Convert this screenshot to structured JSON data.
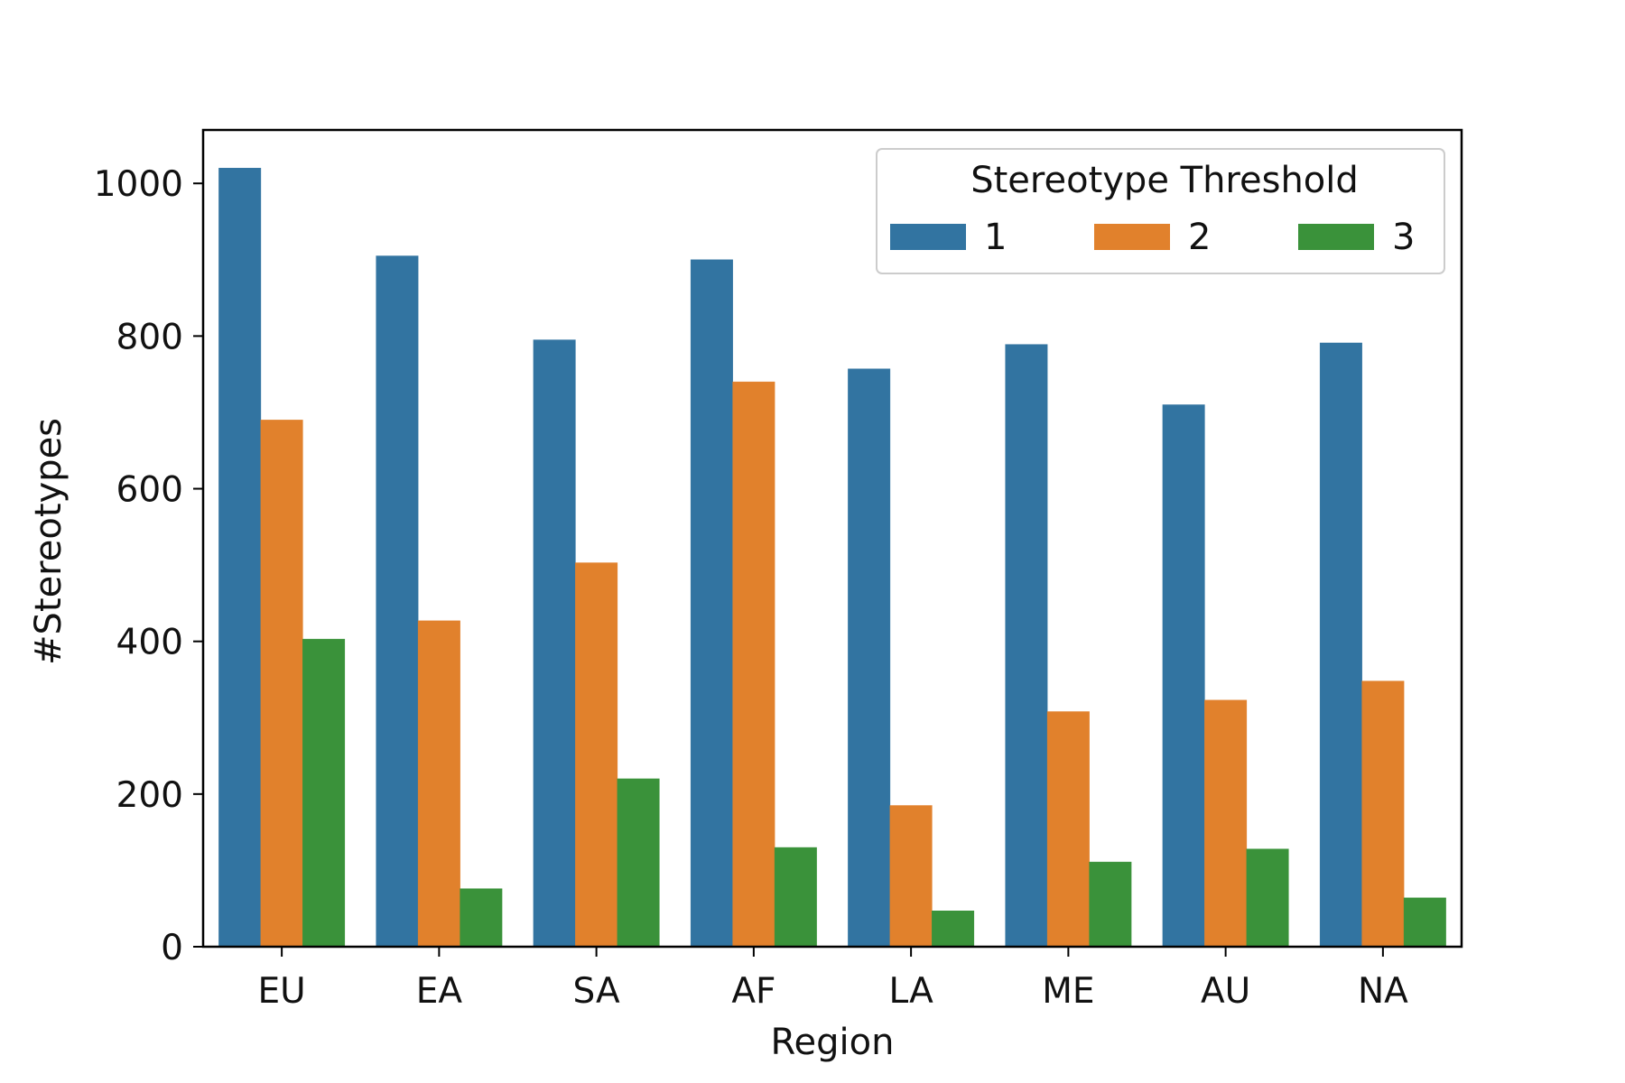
{
  "chart_data": {
    "type": "bar",
    "title": "",
    "xlabel": "Region",
    "ylabel": "#Stereotypes",
    "ylim": [
      0,
      1070
    ],
    "yticks": [
      0,
      200,
      400,
      600,
      800,
      1000
    ],
    "categories": [
      "EU",
      "EA",
      "SA",
      "AF",
      "LA",
      "ME",
      "AU",
      "NA"
    ],
    "legend": {
      "title": "Stereotype Threshold",
      "placement": "top-right"
    },
    "grid": false,
    "series": [
      {
        "name": "1",
        "color": "#3274a1",
        "values": [
          1020,
          905,
          795,
          900,
          757,
          789,
          710,
          791
        ]
      },
      {
        "name": "2",
        "color": "#e1812c",
        "values": [
          690,
          427,
          503,
          740,
          185,
          308,
          323,
          348
        ]
      },
      {
        "name": "3",
        "color": "#3a923a",
        "values": [
          403,
          76,
          220,
          130,
          47,
          111,
          128,
          64
        ]
      }
    ]
  }
}
